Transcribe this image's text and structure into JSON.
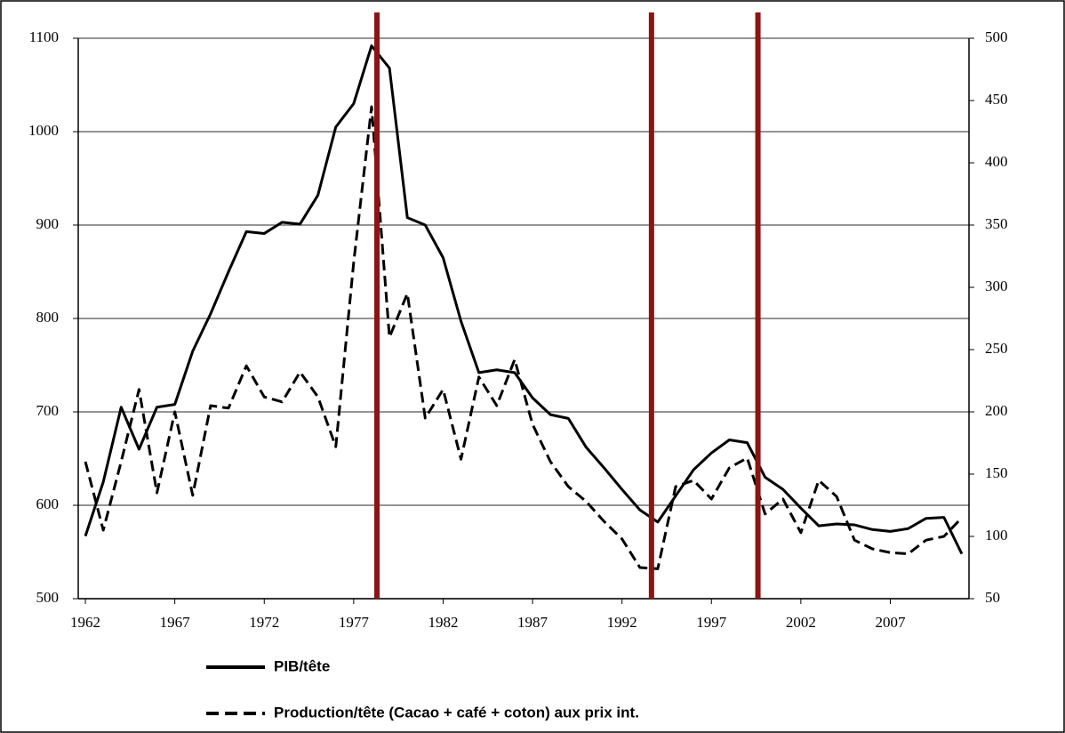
{
  "chart_data": {
    "type": "line",
    "x": [
      1962,
      1963,
      1964,
      1965,
      1966,
      1967,
      1968,
      1969,
      1970,
      1971,
      1972,
      1973,
      1974,
      1975,
      1976,
      1977,
      1978,
      1979,
      1980,
      1981,
      1982,
      1983,
      1984,
      1985,
      1986,
      1987,
      1988,
      1989,
      1990,
      1991,
      1992,
      1993,
      1994,
      1995,
      1996,
      1997,
      1998,
      1999,
      2000,
      2001,
      2002,
      2003,
      2004,
      2005,
      2006,
      2007,
      2008,
      2009,
      2010,
      2011
    ],
    "series": [
      {
        "name": "PIB/tête",
        "color": "#000000",
        "dash": false,
        "values": [
          567,
          625,
          705,
          660,
          705,
          708,
          765,
          805,
          850,
          893,
          891,
          903,
          901,
          932,
          1005,
          1030,
          1092,
          1068,
          908,
          900,
          865,
          797,
          742,
          745,
          742,
          715,
          697,
          693,
          662,
          640,
          617,
          595,
          582,
          610,
          638,
          656,
          670,
          667,
          630,
          617,
          597,
          578,
          580,
          579,
          574,
          572,
          575,
          586,
          587,
          548
        ]
      },
      {
        "name": "Production/tête (Cacao + café + coton) aux prix int.",
        "color": "#000000",
        "dash": true,
        "axis": "y2",
        "values": [
          160,
          105,
          160,
          218,
          135,
          200,
          133,
          205,
          203,
          237,
          212,
          208,
          232,
          212,
          172,
          320,
          445,
          260,
          295,
          195,
          218,
          162,
          228,
          205,
          242,
          190,
          160,
          140,
          128,
          112,
          98,
          75,
          74,
          140,
          145,
          130,
          155,
          163,
          118,
          130,
          103,
          145,
          132,
          97,
          90,
          87,
          86,
          97,
          100,
          115
        ]
      }
    ],
    "vertical_lines": [
      {
        "x": 1978.3,
        "color": "#8b1414"
      },
      {
        "x": 1993.65,
        "color": "#8b1414"
      },
      {
        "x": 1999.6,
        "color": "#8b1414"
      }
    ],
    "xlim": [
      1961.6,
      2011.4
    ],
    "xticks": [
      1962,
      1967,
      1972,
      1977,
      1982,
      1987,
      1992,
      1997,
      2002,
      2007
    ],
    "ylim": [
      500,
      1100
    ],
    "yticks": [
      500,
      600,
      700,
      800,
      900,
      1000,
      1100
    ],
    "y2lim": [
      50,
      500
    ],
    "y2ticks": [
      50,
      100,
      150,
      200,
      250,
      300,
      350,
      400,
      450,
      500
    ],
    "grid": true
  }
}
